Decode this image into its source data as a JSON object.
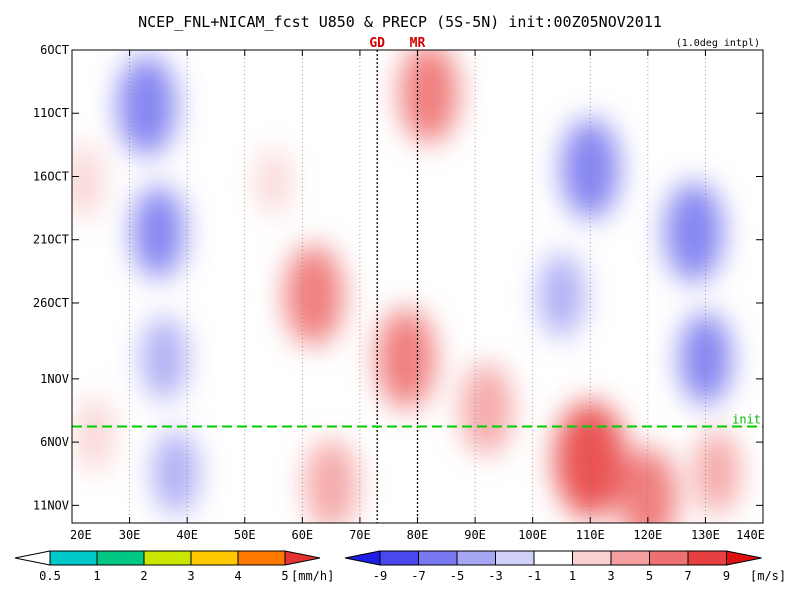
{
  "chart_data": {
    "type": "heatmap",
    "title": "NCEP_FNL+NICAM_fcst U850 & PRECP (5S-5N) init:00Z05NOV2011",
    "note": "(1.0deg intpl)",
    "x_ticks": [
      "20E",
      "30E",
      "40E",
      "50E",
      "60E",
      "70E",
      "80E",
      "90E",
      "100E",
      "110E",
      "120E",
      "130E",
      "140E"
    ],
    "x_tick_values": [
      20,
      30,
      40,
      50,
      60,
      70,
      80,
      90,
      100,
      110,
      120,
      130,
      140
    ],
    "xlim": [
      20,
      140
    ],
    "y_ticks": [
      "6OCT",
      "11OCT",
      "16OCT",
      "21OCT",
      "26OCT",
      "1NOV",
      "6NOV",
      "11NOV"
    ],
    "y_tick_values": [
      0,
      5,
      10,
      15,
      20,
      26,
      31,
      36
    ],
    "ylim": [
      0,
      37
    ],
    "markers": [
      {
        "label": "GD",
        "lon": 73
      },
      {
        "label": "MR",
        "lon": 80
      }
    ],
    "init_line": {
      "label": "init",
      "day": 30
    },
    "u850_colorbar": {
      "levels": [
        "-9",
        "-7",
        "-5",
        "-3",
        "-1",
        "1",
        "3",
        "5",
        "7",
        "9"
      ],
      "unit": "[m/s]",
      "colors": [
        "#1e1ee6",
        "#4848ee",
        "#7878f0",
        "#a6a6f4",
        "#d0d0fa",
        "#ffffff",
        "#fad0d0",
        "#f4a0a0",
        "#ee7070",
        "#e84040",
        "#e01010"
      ]
    },
    "precip_colorbar": {
      "levels": [
        "0.5",
        "1",
        "2",
        "3",
        "4",
        "5"
      ],
      "unit": "[mm/h]",
      "colors": [
        "#ffffff",
        "#00c8c8",
        "#00c882",
        "#c8e600",
        "#ffc800",
        "#ff7800",
        "#e63232"
      ]
    },
    "u850_regions": [
      {
        "lon": 33,
        "day": 4,
        "value": -6
      },
      {
        "lon": 35,
        "day": 14,
        "value": -5
      },
      {
        "lon": 36,
        "day": 24,
        "value": -4
      },
      {
        "lon": 38,
        "day": 33,
        "value": -4
      },
      {
        "lon": 22,
        "day": 10,
        "value": 3
      },
      {
        "lon": 24,
        "day": 30,
        "value": 3
      },
      {
        "lon": 62,
        "day": 19,
        "value": 6
      },
      {
        "lon": 55,
        "day": 10,
        "value": 2
      },
      {
        "lon": 65,
        "day": 34,
        "value": 5
      },
      {
        "lon": 82,
        "day": 3,
        "value": 6
      },
      {
        "lon": 78,
        "day": 24,
        "value": 6
      },
      {
        "lon": 92,
        "day": 28,
        "value": 5
      },
      {
        "lon": 110,
        "day": 9,
        "value": -6
      },
      {
        "lon": 128,
        "day": 14,
        "value": -6
      },
      {
        "lon": 105,
        "day": 19,
        "value": -4
      },
      {
        "lon": 130,
        "day": 24,
        "value": -5
      },
      {
        "lon": 110,
        "day": 32,
        "value": 8
      },
      {
        "lon": 120,
        "day": 35,
        "value": 6
      },
      {
        "lon": 132,
        "day": 33,
        "value": 4
      }
    ]
  }
}
